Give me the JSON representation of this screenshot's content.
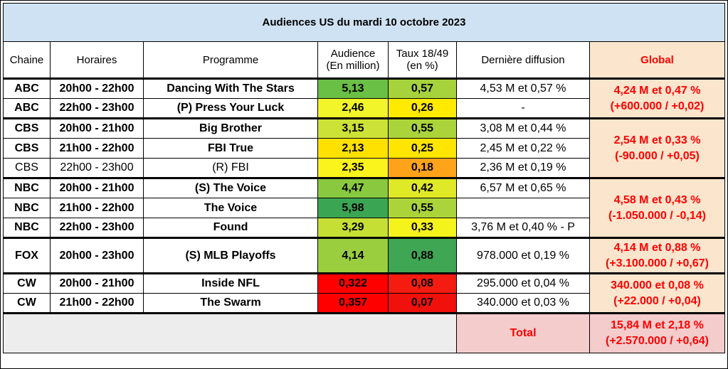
{
  "title": "Audiences US du mardi 10 octobre 2023",
  "headers": {
    "chaine": "Chaine",
    "horaires": "Horaires",
    "programme": "Programme",
    "audience_l1": "Audience",
    "audience_l2": "(En million)",
    "taux_l1": "Taux 18/49",
    "taux_l2": "(en %)",
    "derniere": "Dernière diffusion",
    "global": "Global"
  },
  "rows": [
    {
      "chaine": "ABC",
      "horaires": "20h00 - 22h00",
      "programme": "Dancing With The Stars",
      "audience": "5,13",
      "taux": "0,57",
      "derniere": "4,53 M et 0,57 %",
      "aud_color": "#6abf45",
      "taux_color": "#a6d33c"
    },
    {
      "chaine": "ABC",
      "horaires": "22h00 - 23h00",
      "programme": "(P) Press Your Luck",
      "audience": "2,46",
      "taux": "0,26",
      "derniere": "-",
      "aud_color": "#f2f529",
      "taux_color": "#ffea00"
    },
    {
      "chaine": "CBS",
      "horaires": "20h00 - 21h00",
      "programme": "Big Brother",
      "audience": "3,15",
      "taux": "0,55",
      "derniere": "3,08 M et 0,44 %",
      "aud_color": "#cde236",
      "taux_color": "#abd43a"
    },
    {
      "chaine": "CBS",
      "horaires": "21h00 - 22h00",
      "programme": "FBI True",
      "audience": "2,13",
      "taux": "0,25",
      "derniere": "2,45 M et 0,22 %",
      "aud_color": "#ffe100",
      "taux_color": "#ffe500"
    },
    {
      "chaine": "CBS",
      "horaires": "22h00 - 23h00",
      "programme": "(R) FBI",
      "audience": "2,35",
      "taux": "0,18",
      "derniere": "2,36 M et 0,19 %",
      "aud_color": "#fbf41c",
      "taux_color": "#ffa31a"
    },
    {
      "chaine": "NBC",
      "horaires": "20h00 - 21h00",
      "programme": "(S) The Voice",
      "audience": "4,47",
      "taux": "0,42",
      "derniere": "6,57 M et 0,65 %",
      "aud_color": "#8ac93f",
      "taux_color": "#e0e926"
    },
    {
      "chaine": "NBC",
      "horaires": "21h00 - 22h00",
      "programme": "The Voice",
      "audience": "5,98",
      "taux": "0,55",
      "derniere": "",
      "aud_color": "#3aa653",
      "taux_color": "#abd43a"
    },
    {
      "chaine": "NBC",
      "horaires": "22h00 - 23h00",
      "programme": "Found",
      "audience": "3,29",
      "taux": "0,33",
      "derniere": "3,76 M et 0,40 % - P",
      "aud_color": "#c5df35",
      "taux_color": "#f5f31c"
    },
    {
      "chaine": "FOX",
      "horaires": "20h00 - 23h00",
      "programme": "(S) MLB Playoffs",
      "audience": "4,14",
      "taux": "0,88",
      "derniere": "978.000 et 0,19 %",
      "aud_color": "#9bce3e",
      "taux_color": "#3fa653"
    },
    {
      "chaine": "CW",
      "horaires": "20h00 - 21h00",
      "programme": "Inside NFL",
      "audience": "0,322",
      "taux": "0,08",
      "derniere": "295.000 et 0,04 %",
      "aud_color": "#ff0000",
      "taux_color": "#f41c10"
    },
    {
      "chaine": "CW",
      "horaires": "21h00 - 22h00",
      "programme": "The Swarm",
      "audience": "0,357",
      "taux": "0,07",
      "derniere": "340.000 et 0,03 %",
      "aud_color": "#ff0000",
      "taux_color": "#f0100c"
    }
  ],
  "globals": {
    "abc": {
      "line1": "4,24 M et 0,47 %",
      "line2": "(+600.000 / +0,02)"
    },
    "cbs": {
      "line1": "2,54 M et 0,33 %",
      "line2": "(-90.000 / +0,05)"
    },
    "nbc": {
      "line1": "4,58 M et 0,43 %",
      "line2": "(-1.050.000 / -0,14)"
    },
    "fox": {
      "line1": "4,14 M et 0,88 %",
      "line2": "(+3.100.000 / +0,67)"
    },
    "cw": {
      "line1": "340.000 et 0,08 %",
      "line2": "(+22.000 / +0,04)"
    }
  },
  "total": {
    "label": "Total",
    "line1": "15,84 M et 2,18 %",
    "line2": "(+2.570.000 / +0,64)"
  }
}
